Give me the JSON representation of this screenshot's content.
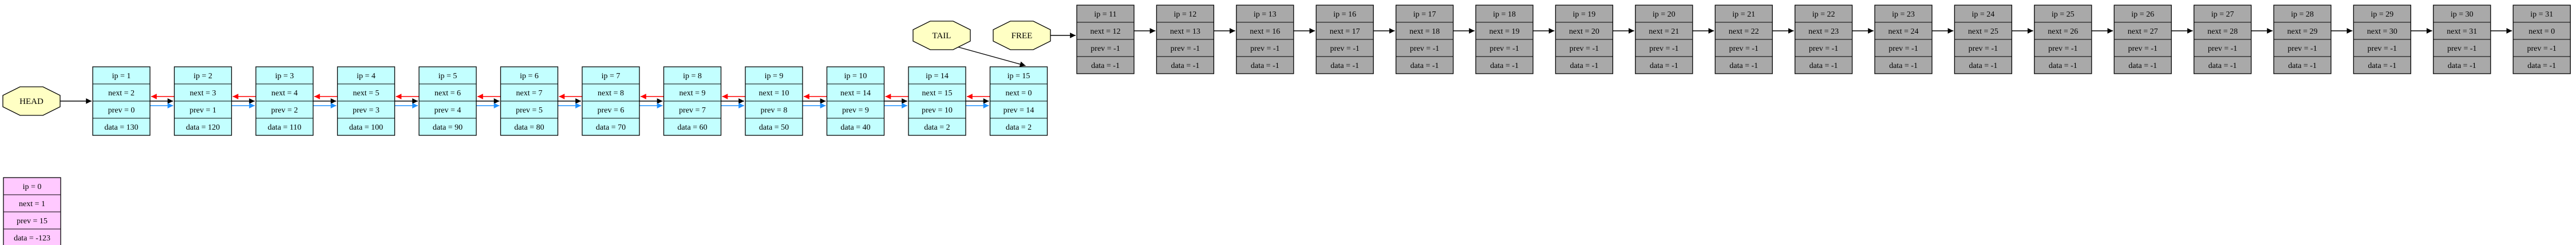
{
  "colors": {
    "zero": "#ffc9ff",
    "active": "#c3ffff",
    "free": "#a9a9a9",
    "octagon": "#ffffc4",
    "next_edge": "#000000",
    "prev_edge": "#ff0000",
    "link_edge": "#1e90ff"
  },
  "labels": {
    "head": "HEAD",
    "tail": "TAIL",
    "free": "FREE"
  },
  "zero_node": {
    "lines": [
      "ip = 0",
      "next = 1",
      "prev = 15",
      "data = -123"
    ]
  },
  "active_nodes": [
    {
      "lines": [
        "ip = 1",
        "next = 2",
        "prev = 0",
        "data = 130"
      ]
    },
    {
      "lines": [
        "ip = 2",
        "next = 3",
        "prev = 1",
        "data = 120"
      ]
    },
    {
      "lines": [
        "ip = 3",
        "next = 4",
        "prev = 2",
        "data = 110"
      ]
    },
    {
      "lines": [
        "ip = 4",
        "next = 5",
        "prev = 3",
        "data = 100"
      ]
    },
    {
      "lines": [
        "ip = 5",
        "next = 6",
        "prev = 4",
        "data = 90"
      ]
    },
    {
      "lines": [
        "ip = 6",
        "next = 7",
        "prev = 5",
        "data = 80"
      ]
    },
    {
      "lines": [
        "ip = 7",
        "next = 8",
        "prev = 6",
        "data = 70"
      ]
    },
    {
      "lines": [
        "ip = 8",
        "next = 9",
        "prev = 7",
        "data = 60"
      ]
    },
    {
      "lines": [
        "ip = 9",
        "next = 10",
        "prev = 8",
        "data = 50"
      ]
    },
    {
      "lines": [
        "ip = 10",
        "next = 14",
        "prev = 9",
        "data = 40"
      ]
    },
    {
      "lines": [
        "ip = 14",
        "next = 15",
        "prev = 10",
        "data = 2"
      ]
    },
    {
      "lines": [
        "ip = 15",
        "next = 0",
        "prev = 14",
        "data = 2"
      ]
    }
  ],
  "free_nodes": [
    {
      "lines": [
        "ip = 11",
        "next = 12",
        "prev = -1",
        "data = -1"
      ]
    },
    {
      "lines": [
        "ip = 12",
        "next = 13",
        "prev = -1",
        "data = -1"
      ]
    },
    {
      "lines": [
        "ip = 13",
        "next = 16",
        "prev = -1",
        "data = -1"
      ]
    },
    {
      "lines": [
        "ip = 16",
        "next = 17",
        "prev = -1",
        "data = -1"
      ]
    },
    {
      "lines": [
        "ip = 17",
        "next = 18",
        "prev = -1",
        "data = -1"
      ]
    },
    {
      "lines": [
        "ip = 18",
        "next = 19",
        "prev = -1",
        "data = -1"
      ]
    },
    {
      "lines": [
        "ip = 19",
        "next = 20",
        "prev = -1",
        "data = -1"
      ]
    },
    {
      "lines": [
        "ip = 20",
        "next = 21",
        "prev = -1",
        "data = -1"
      ]
    },
    {
      "lines": [
        "ip = 21",
        "next = 22",
        "prev = -1",
        "data = -1"
      ]
    },
    {
      "lines": [
        "ip = 22",
        "next = 23",
        "prev = -1",
        "data = -1"
      ]
    },
    {
      "lines": [
        "ip = 23",
        "next = 24",
        "prev = -1",
        "data = -1"
      ]
    },
    {
      "lines": [
        "ip = 24",
        "next = 25",
        "prev = -1",
        "data = -1"
      ]
    },
    {
      "lines": [
        "ip = 25",
        "next = 26",
        "prev = -1",
        "data = -1"
      ]
    },
    {
      "lines": [
        "ip = 26",
        "next = 27",
        "prev = -1",
        "data = -1"
      ]
    },
    {
      "lines": [
        "ip = 27",
        "next = 28",
        "prev = -1",
        "data = -1"
      ]
    },
    {
      "lines": [
        "ip = 28",
        "next = 29",
        "prev = -1",
        "data = -1"
      ]
    },
    {
      "lines": [
        "ip = 29",
        "next = 30",
        "prev = -1",
        "data = -1"
      ]
    },
    {
      "lines": [
        "ip = 30",
        "next = 31",
        "prev = -1",
        "data = -1"
      ]
    },
    {
      "lines": [
        "ip = 31",
        "next = 0",
        "prev = -1",
        "data = -1"
      ]
    }
  ]
}
